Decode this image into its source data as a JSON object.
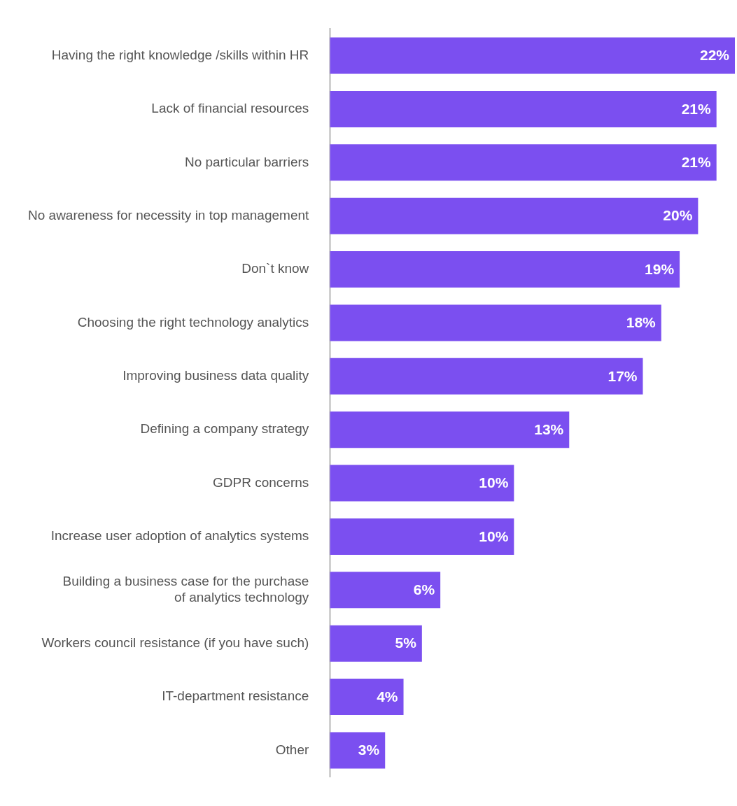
{
  "chart_data": {
    "type": "bar",
    "orientation": "horizontal",
    "categories": [
      "Having the right knowledge /skills within HR",
      "Lack of financial resources",
      "No particular barriers",
      "No awareness for necessity in top management",
      "Don`t know",
      "Choosing the right technology analytics",
      "Improving business data quality",
      "Defining a company strategy",
      "GDPR concerns",
      "Increase user adoption of analytics systems",
      "Building a business case for the purchase\nof analytics technology",
      "Workers council resistance (if you have such)",
      "IT-department resistance",
      "Other"
    ],
    "values": [
      22,
      21,
      21,
      20,
      19,
      18,
      17,
      13,
      10,
      10,
      6,
      5,
      4,
      3
    ],
    "value_labels": [
      "22%",
      "21%",
      "21%",
      "20%",
      "19%",
      "18%",
      "17%",
      "13%",
      "10%",
      "10%",
      "6%",
      "5%",
      "4%",
      "3%"
    ],
    "color": "#7b4ff0",
    "legend": false,
    "tick_labels": "y"
  }
}
